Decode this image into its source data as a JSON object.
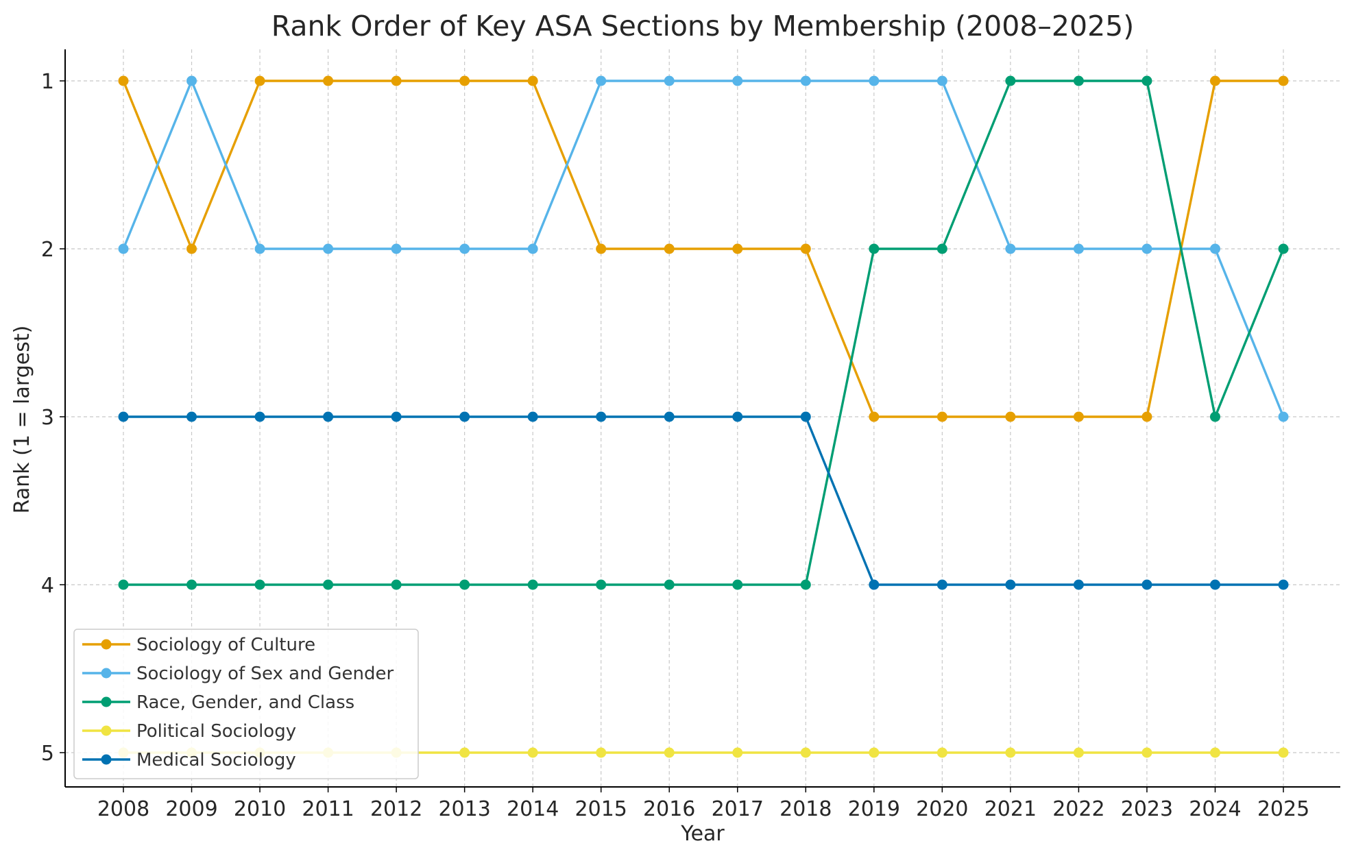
{
  "chart_data": {
    "type": "line",
    "title": "Rank Order of Key ASA Sections by Membership (2008–2025)",
    "xlabel": "Year",
    "ylabel": "Rank (1 = largest)",
    "x": [
      "2008",
      "2009",
      "2010",
      "2011",
      "2012",
      "2013",
      "2014",
      "2015",
      "2016",
      "2017",
      "2018",
      "2019",
      "2020",
      "2021",
      "2022",
      "2023",
      "2024",
      "2025"
    ],
    "yticks": [
      "1",
      "2",
      "3",
      "4",
      "5"
    ],
    "ylim": [
      5.2,
      0.8
    ],
    "y_inverted": true,
    "grid": true,
    "legend_position": "lower-left",
    "series": [
      {
        "name": "Sociology of Culture",
        "color": "#E69F00",
        "values": [
          1,
          2,
          1,
          1,
          1,
          1,
          1,
          2,
          2,
          2,
          2,
          3,
          3,
          3,
          3,
          3,
          1,
          1
        ]
      },
      {
        "name": "Sociology of Sex and Gender",
        "color": "#56B4E9",
        "values": [
          2,
          1,
          2,
          2,
          2,
          2,
          2,
          1,
          1,
          1,
          1,
          1,
          1,
          2,
          2,
          2,
          2,
          3
        ]
      },
      {
        "name": "Race, Gender, and Class",
        "color": "#009E73",
        "values": [
          4,
          4,
          4,
          4,
          4,
          4,
          4,
          4,
          4,
          4,
          4,
          2,
          2,
          1,
          1,
          1,
          3,
          2
        ]
      },
      {
        "name": "Political Sociology",
        "color": "#F0E442",
        "values": [
          5,
          5,
          5,
          5,
          5,
          5,
          5,
          5,
          5,
          5,
          5,
          5,
          5,
          5,
          5,
          5,
          5,
          5
        ]
      },
      {
        "name": "Medical Sociology",
        "color": "#0072B2",
        "values": [
          3,
          3,
          3,
          3,
          3,
          3,
          3,
          3,
          3,
          3,
          3,
          4,
          4,
          4,
          4,
          4,
          4,
          4
        ]
      }
    ]
  }
}
